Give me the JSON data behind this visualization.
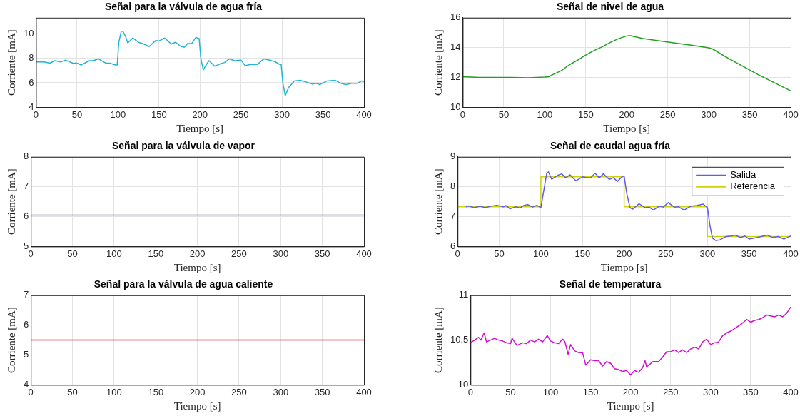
{
  "chart_data": [
    {
      "type": "line",
      "title": "Señal para la válvula de agua fría",
      "xlabel": "Tiempo [s]",
      "ylabel": "Corriente [mA]",
      "xlim": [
        0,
        400
      ],
      "xticks": [
        0,
        50,
        100,
        150,
        200,
        250,
        300,
        350,
        400
      ],
      "ylim": [
        4,
        11.3
      ],
      "yticks": [
        4,
        6,
        8,
        10
      ],
      "grid": true,
      "legend": false,
      "series": [
        {
          "color": "#1fb5d6",
          "x": [
            0,
            10,
            17,
            23,
            30,
            36,
            45,
            50,
            55,
            65,
            70,
            76,
            85,
            90,
            97,
            99,
            101,
            104,
            106,
            109,
            112,
            118,
            125,
            130,
            138,
            146,
            150,
            157,
            165,
            170,
            177,
            181,
            185,
            190,
            195,
            199,
            201,
            204,
            207,
            211,
            218,
            225,
            230,
            236,
            242,
            250,
            255,
            262,
            270,
            278,
            285,
            292,
            297,
            299,
            301,
            304,
            308,
            315,
            322,
            330,
            337,
            342,
            346,
            355,
            365,
            372,
            378,
            385,
            392,
            397,
            400
          ],
          "values": [
            7.7,
            7.7,
            7.6,
            7.8,
            7.7,
            7.85,
            7.6,
            7.6,
            7.45,
            7.8,
            7.8,
            7.95,
            7.6,
            7.6,
            7.45,
            7.45,
            9.3,
            10.2,
            10.2,
            9.8,
            9.25,
            9.65,
            9.3,
            9.2,
            8.95,
            9.45,
            9.4,
            9.65,
            9.15,
            9.3,
            8.95,
            8.9,
            9.2,
            9.2,
            9.7,
            9.6,
            8.0,
            7.05,
            7.4,
            7.8,
            7.35,
            7.55,
            7.65,
            7.95,
            7.8,
            7.85,
            7.4,
            7.5,
            7.5,
            7.95,
            7.85,
            7.7,
            7.5,
            7.5,
            6.0,
            4.95,
            5.6,
            6.15,
            6.2,
            6.05,
            5.9,
            5.95,
            5.85,
            6.15,
            6.2,
            5.95,
            5.85,
            5.95,
            5.95,
            6.15,
            6.1
          ]
        }
      ]
    },
    {
      "type": "line",
      "title": "Señal de nivel de agua",
      "xlabel": "Tiempo [s]",
      "ylabel": "Corriente [mA]",
      "xlim": [
        0,
        400
      ],
      "xticks": [
        0,
        50,
        100,
        150,
        200,
        250,
        300,
        350,
        400
      ],
      "ylim": [
        10,
        16
      ],
      "yticks": [
        10,
        12,
        14,
        16
      ],
      "grid": true,
      "legend": false,
      "series": [
        {
          "color": "#22a022",
          "x": [
            0,
            20,
            40,
            60,
            80,
            100,
            105,
            110,
            120,
            130,
            140,
            150,
            160,
            170,
            180,
            190,
            200,
            205,
            210,
            220,
            240,
            260,
            280,
            300,
            305,
            320,
            340,
            360,
            380,
            400
          ],
          "values": [
            12.05,
            12.0,
            12.0,
            12.0,
            11.98,
            12.02,
            12.05,
            12.2,
            12.45,
            12.85,
            13.15,
            13.5,
            13.8,
            14.05,
            14.35,
            14.6,
            14.78,
            14.8,
            14.72,
            14.6,
            14.45,
            14.3,
            14.15,
            13.98,
            13.9,
            13.4,
            12.8,
            12.2,
            11.65,
            11.1
          ]
        }
      ]
    },
    {
      "type": "line",
      "title": "Señal para la válvula de vapor",
      "xlabel": "Tiempo [s]",
      "ylabel": "Corriente [mA]",
      "xlim": [
        0,
        400
      ],
      "xticks": [
        0,
        50,
        100,
        150,
        200,
        250,
        300,
        350,
        400
      ],
      "ylim": [
        5,
        8
      ],
      "yticks": [
        5,
        6,
        7,
        8
      ],
      "grid": true,
      "legend": false,
      "series": [
        {
          "color": "#7a7ab8",
          "x": [
            0,
            400
          ],
          "values": [
            6.05,
            6.05
          ]
        }
      ]
    },
    {
      "type": "line",
      "title": "Señal de caudal agua fría",
      "xlabel": "Tiempo [s]",
      "ylabel": "Corriente [mA]",
      "xlim": [
        0,
        400
      ],
      "xticks": [
        0,
        50,
        100,
        150,
        200,
        250,
        300,
        350,
        400
      ],
      "ylim": [
        6,
        9
      ],
      "yticks": [
        6,
        7,
        8,
        9
      ],
      "grid": true,
      "legend": "top right",
      "series": [
        {
          "name": "Salida",
          "color": "#5c5cf5",
          "x": [
            10,
            13,
            20,
            27,
            33,
            40,
            47,
            55,
            58,
            63,
            70,
            75,
            80,
            84,
            90,
            95,
            100,
            103,
            107,
            109,
            113,
            120,
            125,
            130,
            135,
            142,
            150,
            155,
            160,
            165,
            170,
            175,
            182,
            187,
            192,
            198,
            200,
            203,
            207,
            210,
            218,
            225,
            230,
            235,
            242,
            247,
            253,
            260,
            265,
            272,
            280,
            287,
            295,
            300,
            303,
            306,
            310,
            315,
            322,
            328,
            333,
            340,
            345,
            350,
            360,
            367,
            372,
            378,
            385,
            392,
            396,
            400
          ],
          "values": [
            7.33,
            7.36,
            7.3,
            7.35,
            7.3,
            7.35,
            7.38,
            7.33,
            7.37,
            7.26,
            7.33,
            7.29,
            7.38,
            7.4,
            7.32,
            7.38,
            7.3,
            7.8,
            8.45,
            8.5,
            8.25,
            8.38,
            8.43,
            8.3,
            8.4,
            8.2,
            8.33,
            8.3,
            8.3,
            8.45,
            8.3,
            8.43,
            8.25,
            8.3,
            8.18,
            8.35,
            8.35,
            7.8,
            7.3,
            7.25,
            7.43,
            7.3,
            7.32,
            7.22,
            7.35,
            7.32,
            7.47,
            7.32,
            7.33,
            7.22,
            7.35,
            7.37,
            7.42,
            7.3,
            6.7,
            6.28,
            6.2,
            6.22,
            6.33,
            6.35,
            6.38,
            6.3,
            6.35,
            6.25,
            6.3,
            6.35,
            6.38,
            6.3,
            6.33,
            6.25,
            6.3,
            6.35
          ]
        },
        {
          "name": "Referencia",
          "color": "#d2d20a",
          "x": [
            0,
            100,
            100,
            200,
            200,
            300,
            300,
            400
          ],
          "values": [
            7.33,
            7.33,
            8.33,
            8.33,
            7.33,
            7.33,
            6.33,
            6.33
          ]
        }
      ]
    },
    {
      "type": "line",
      "title": "Señal para la válvula de agua caliente",
      "xlabel": "Tiempo [s]",
      "ylabel": "Corriente [mA]",
      "xlim": [
        0,
        400
      ],
      "xticks": [
        0,
        50,
        100,
        150,
        200,
        250,
        300,
        350,
        400
      ],
      "ylim": [
        4,
        7
      ],
      "yticks": [
        4,
        5,
        6,
        7
      ],
      "grid": true,
      "legend": false,
      "series": [
        {
          "color": "#dd1c3b",
          "x": [
            0,
            400
          ],
          "values": [
            5.5,
            5.5
          ]
        }
      ]
    },
    {
      "type": "line",
      "title": "Señal de temperatura",
      "xlabel": "Tiempo [s]",
      "ylabel": "Corriente [mA]",
      "xlim": [
        0,
        400
      ],
      "xticks": [
        0,
        50,
        100,
        150,
        200,
        250,
        300,
        350,
        400
      ],
      "ylim": [
        10,
        11
      ],
      "yticks": [
        10,
        10.5,
        11
      ],
      "grid": true,
      "legend": false,
      "series": [
        {
          "color": "#d010d0",
          "x": [
            0,
            5,
            10,
            13,
            17,
            20,
            25,
            30,
            35,
            40,
            45,
            50,
            52,
            58,
            65,
            70,
            75,
            80,
            85,
            90,
            96,
            100,
            105,
            110,
            115,
            118,
            122,
            125,
            130,
            135,
            140,
            144,
            150,
            155,
            160,
            165,
            170,
            175,
            180,
            185,
            190,
            195,
            200,
            205,
            210,
            215,
            218,
            220,
            228,
            235,
            240,
            245,
            250,
            255,
            260,
            265,
            270,
            275,
            280,
            285,
            290,
            295,
            300,
            305,
            310,
            315,
            320,
            325,
            330,
            335,
            340,
            345,
            350,
            355,
            360,
            365,
            370,
            375,
            380,
            385,
            390,
            395,
            400
          ],
          "values": [
            10.47,
            10.5,
            10.53,
            10.5,
            10.58,
            10.48,
            10.5,
            10.52,
            10.5,
            10.49,
            10.47,
            10.46,
            10.52,
            10.44,
            10.47,
            10.46,
            10.5,
            10.48,
            10.51,
            10.48,
            10.55,
            10.49,
            10.47,
            10.46,
            10.51,
            10.48,
            10.34,
            10.45,
            10.38,
            10.36,
            10.36,
            10.22,
            10.28,
            10.27,
            10.27,
            10.21,
            10.26,
            10.24,
            10.18,
            10.17,
            10.15,
            10.16,
            10.11,
            10.16,
            10.14,
            10.19,
            10.27,
            10.2,
            10.26,
            10.26,
            10.31,
            10.37,
            10.37,
            10.39,
            10.36,
            10.39,
            10.36,
            10.4,
            10.42,
            10.4,
            10.48,
            10.51,
            10.45,
            10.47,
            10.48,
            10.55,
            10.58,
            10.6,
            10.63,
            10.66,
            10.69,
            10.73,
            10.7,
            10.72,
            10.73,
            10.75,
            10.78,
            10.77,
            10.76,
            10.78,
            10.76,
            10.8,
            10.87
          ]
        }
      ]
    }
  ]
}
